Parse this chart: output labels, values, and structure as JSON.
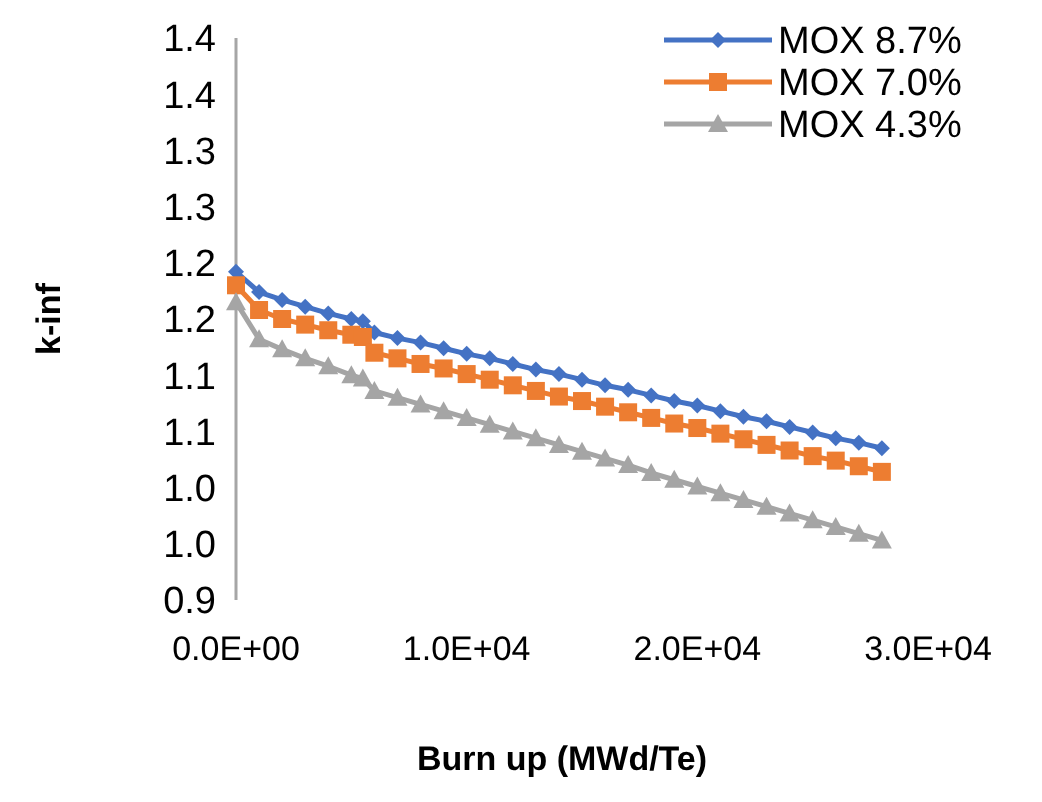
{
  "chart_data": {
    "type": "line",
    "xlabel": "Burn up (MWd/Te)",
    "ylabel": "k-inf",
    "x": [
      0,
      1000,
      2000,
      3000,
      4000,
      5000,
      5500,
      6000,
      7000,
      8000,
      9000,
      10000,
      11000,
      12000,
      13000,
      14000,
      15000,
      16000,
      17000,
      18000,
      19000,
      20000,
      21000,
      22000,
      23000,
      24000,
      25000,
      26000,
      27000,
      28000
    ],
    "series": [
      {
        "name": "MOX 8.7%",
        "color": "#4472c4",
        "marker": "diamond",
        "values": [
          1.192,
          1.174,
          1.167,
          1.161,
          1.155,
          1.15,
          1.148,
          1.138,
          1.133,
          1.129,
          1.124,
          1.119,
          1.115,
          1.11,
          1.105,
          1.101,
          1.096,
          1.091,
          1.087,
          1.082,
          1.077,
          1.073,
          1.068,
          1.063,
          1.059,
          1.054,
          1.049,
          1.044,
          1.04,
          1.035
        ]
      },
      {
        "name": "MOX 7.0%",
        "color": "#ed7d31",
        "marker": "square",
        "values": [
          1.18,
          1.158,
          1.15,
          1.145,
          1.14,
          1.136,
          1.134,
          1.12,
          1.115,
          1.11,
          1.106,
          1.101,
          1.096,
          1.091,
          1.086,
          1.081,
          1.077,
          1.072,
          1.067,
          1.062,
          1.057,
          1.053,
          1.048,
          1.043,
          1.038,
          1.033,
          1.028,
          1.024,
          1.019,
          1.014
        ]
      },
      {
        "name": "MOX 4.3%",
        "color": "#a5a5a5",
        "marker": "triangle",
        "values": [
          1.165,
          1.132,
          1.123,
          1.115,
          1.108,
          1.1,
          1.097,
          1.086,
          1.08,
          1.074,
          1.068,
          1.062,
          1.056,
          1.05,
          1.044,
          1.038,
          1.032,
          1.026,
          1.02,
          1.013,
          1.007,
          1.001,
          0.995,
          0.989,
          0.983,
          0.977,
          0.971,
          0.965,
          0.959,
          0.953
        ]
      }
    ],
    "xlim": [
      0,
      30000
    ],
    "xticks": [
      {
        "value": 0,
        "label": "0.0E+00"
      },
      {
        "value": 10000,
        "label": "1.0E+04"
      },
      {
        "value": 20000,
        "label": "2.0E+04"
      },
      {
        "value": 30000,
        "label": "3.0E+04"
      }
    ],
    "ylim": [
      0.9,
      1.4
    ],
    "yticks": [
      {
        "value": 0.9,
        "label": "0.9"
      },
      {
        "value": 0.95,
        "label": "1.0"
      },
      {
        "value": 1.0,
        "label": "1.0"
      },
      {
        "value": 1.05,
        "label": "1.1"
      },
      {
        "value": 1.1,
        "label": "1.1"
      },
      {
        "value": 1.15,
        "label": "1.2"
      },
      {
        "value": 1.2,
        "label": "1.2"
      },
      {
        "value": 1.25,
        "label": "1.3"
      },
      {
        "value": 1.3,
        "label": "1.3"
      },
      {
        "value": 1.35,
        "label": "1.4"
      },
      {
        "value": 1.4,
        "label": "1.4"
      }
    ],
    "grid": false,
    "legend": "top right",
    "line_style": "solid"
  }
}
